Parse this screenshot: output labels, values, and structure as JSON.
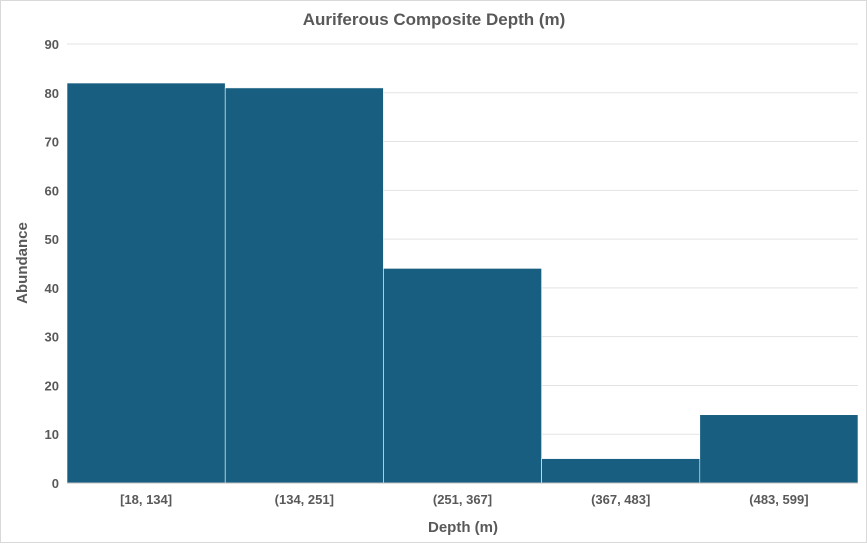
{
  "chart_data": {
    "type": "bar",
    "title": "Auriferous Composite Depth (m)",
    "xlabel": "Depth (m)",
    "ylabel": "Abundance",
    "categories": [
      "[18, 134]",
      "(134, 251]",
      "(251, 367]",
      "(367, 483]",
      "(483, 599]"
    ],
    "values": [
      82,
      81,
      44,
      5,
      14
    ],
    "ylim": [
      0,
      90
    ],
    "yticks": [
      0,
      10,
      20,
      30,
      40,
      50,
      60,
      70,
      80,
      90
    ],
    "grid": true,
    "legend": "none",
    "bar_color": "#175e80",
    "gridline_color": "#e3e3e3"
  }
}
